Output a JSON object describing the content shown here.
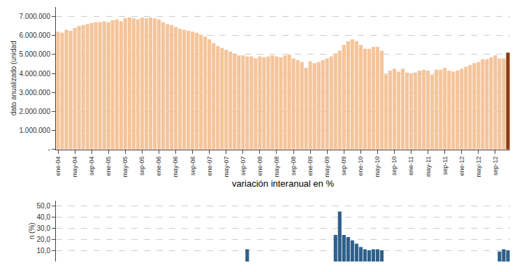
{
  "chart_data": [
    {
      "type": "bar",
      "y_label": "dato anualizado (unidad",
      "categories": [
        "ene-04",
        null,
        null,
        null,
        "may-04",
        null,
        null,
        null,
        "sep-04",
        null,
        null,
        null,
        "ene-05",
        null,
        null,
        null,
        "may-05",
        null,
        null,
        null,
        "sep-05",
        null,
        null,
        null,
        "ene-06",
        null,
        null,
        null,
        "may-06",
        null,
        null,
        null,
        "sep-06",
        null,
        null,
        null,
        "ene-07",
        null,
        null,
        null,
        "may-07",
        null,
        null,
        null,
        "sep-07",
        null,
        null,
        null,
        "ene-08",
        null,
        null,
        null,
        "may-08",
        null,
        null,
        null,
        "sep-08",
        null,
        null,
        null,
        "ene-09",
        null,
        null,
        null,
        "may-09",
        null,
        null,
        null,
        "sep-09",
        null,
        null,
        null,
        "ene-10",
        null,
        null,
        null,
        "may-10",
        null,
        null,
        null,
        "sep-10",
        null,
        null,
        null,
        "ene-11",
        null,
        null,
        null,
        "may-11",
        null,
        null,
        null,
        "sep-11",
        null,
        null,
        null,
        "ene-12",
        null,
        null,
        null,
        "may-12",
        null,
        null,
        null,
        "sep-12",
        null,
        null,
        null
      ],
      "values": [
        6200000,
        6150000,
        6300000,
        6250000,
        6400000,
        6500000,
        6550000,
        6600000,
        6650000,
        6700000,
        6700000,
        6750000,
        6700000,
        6800000,
        6850000,
        6750000,
        6900000,
        6950000,
        6900000,
        6850000,
        6950000,
        6900000,
        6950000,
        6900000,
        6850000,
        6700000,
        6600000,
        6550000,
        6450000,
        6350000,
        6300000,
        6250000,
        6200000,
        6150000,
        6050000,
        5950000,
        5800000,
        5600000,
        5450000,
        5350000,
        5250000,
        5150000,
        5050000,
        4950000,
        4950000,
        4900000,
        4900000,
        4800000,
        4900000,
        4850000,
        4900000,
        4950000,
        4900000,
        4850000,
        4950000,
        5000000,
        4800000,
        4700000,
        4600000,
        4300000,
        4650000,
        4550000,
        4600000,
        4700000,
        4800000,
        4900000,
        5050000,
        5200000,
        5500000,
        5700000,
        5800000,
        5700000,
        5500000,
        5300000,
        5300000,
        5400000,
        5400000,
        5200000,
        3950000,
        4150000,
        4250000,
        4100000,
        4250000,
        4050000,
        4000000,
        4050000,
        4150000,
        4200000,
        4150000,
        3950000,
        4200000,
        4200000,
        4300000,
        4150000,
        4100000,
        4150000,
        4250000,
        4350000,
        4450000,
        4550000,
        4600000,
        4750000,
        4750000,
        4850000,
        4950000,
        4800000,
        4800000,
        5100000
      ],
      "colors": [
        "#F5C49A",
        "#F5C49A",
        "#F5C49A",
        "#F5C49A",
        "#F5C49A",
        "#F5C49A",
        "#F5C49A",
        "#F5C49A",
        "#F5C49A",
        "#F5C49A",
        "#F5C49A",
        "#F5C49A",
        "#F5C49A",
        "#F5C49A",
        "#F5C49A",
        "#F5C49A",
        "#F5C49A",
        "#F5C49A",
        "#F5C49A",
        "#F5C49A",
        "#F5C49A",
        "#F5C49A",
        "#F5C49A",
        "#F5C49A",
        "#F5C49A",
        "#F5C49A",
        "#F5C49A",
        "#F5C49A",
        "#F5C49A",
        "#F5C49A",
        "#F5C49A",
        "#F5C49A",
        "#F5C49A",
        "#F5C49A",
        "#F5C49A",
        "#F5C49A",
        "#F5C49A",
        "#F5C49A",
        "#F5C49A",
        "#F5C49A",
        "#F5C49A",
        "#F5C49A",
        "#F5C49A",
        "#F5C49A",
        "#F5C49A",
        "#F5C49A",
        "#F5C49A",
        "#F5C49A",
        "#F5C49A",
        "#F5C49A",
        "#F5C49A",
        "#F5C49A",
        "#F5C49A",
        "#F5C49A",
        "#F5C49A",
        "#F5C49A",
        "#F5C49A",
        "#F5C49A",
        "#F5C49A",
        "#F5C49A",
        "#F5C49A",
        "#F5C49A",
        "#F5C49A",
        "#F5C49A",
        "#F5C49A",
        "#F5C49A",
        "#F5C49A",
        "#F5C49A",
        "#F5C49A",
        "#F5C49A",
        "#F5C49A",
        "#F5C49A",
        "#F5C49A",
        "#F5C49A",
        "#F5C49A",
        "#F5C49A",
        "#F5C49A",
        "#F5C49A",
        "#F5C49A",
        "#F5C49A",
        "#F5C49A",
        "#F5C49A",
        "#F5C49A",
        "#F5C49A",
        "#F5C49A",
        "#F5C49A",
        "#F5C49A",
        "#F5C49A",
        "#F5C49A",
        "#F5C49A",
        "#F5C49A",
        "#F5C49A",
        "#F5C49A",
        "#F5C49A",
        "#F5C49A",
        "#F5C49A",
        "#F5C49A",
        "#F5C49A",
        "#F5C49A",
        "#F5C49A",
        "#F5C49A",
        "#F5C49A",
        "#F5C49A",
        "#F5C49A",
        "#F5C49A",
        "#F5C49A",
        "#F5C49A",
        "#8B3A10"
      ],
      "ylim": [
        0,
        7500000
      ],
      "yticks": [
        {
          "value": 0,
          "label": "-"
        },
        {
          "value": 1000000,
          "label": "1.000.000"
        },
        {
          "value": 2000000,
          "label": "2.000.000"
        },
        {
          "value": 3000000,
          "label": "3.000.000"
        },
        {
          "value": 4000000,
          "label": "4.000.000"
        },
        {
          "value": 5000000,
          "label": "5.000.000"
        },
        {
          "value": 6000000,
          "label": "6.000.000"
        },
        {
          "value": 7000000,
          "label": "7.000.000"
        }
      ],
      "grid": true
    },
    {
      "type": "bar",
      "title": "variación interanual en %",
      "y_label": "n (%)",
      "values": [
        0,
        0,
        0,
        0,
        0,
        0,
        0,
        0,
        0,
        0,
        0,
        0,
        0,
        0,
        0,
        0,
        0,
        0,
        0,
        0,
        0,
        0,
        0,
        0,
        0,
        0,
        0,
        0,
        0,
        0,
        0,
        0,
        0,
        0,
        0,
        0,
        0,
        0,
        0,
        0,
        0,
        0,
        0,
        0,
        0,
        11,
        0,
        0,
        0,
        0,
        0,
        0,
        0,
        0,
        0,
        0,
        0,
        0,
        0,
        0,
        0,
        0,
        0,
        0,
        0,
        0,
        24,
        45,
        24,
        22,
        19,
        16,
        13,
        11,
        10,
        11,
        11,
        10,
        0,
        0,
        0,
        0,
        0,
        0,
        0,
        0,
        0,
        0,
        0,
        0,
        0,
        0,
        0,
        0,
        0,
        0,
        0,
        0,
        0,
        0,
        0,
        0,
        0,
        0,
        0,
        9,
        11,
        10
      ],
      "color": "#2E5F8A",
      "ylim": [
        0,
        55
      ],
      "yticks": [
        {
          "value": 10,
          "label": "10,0"
        },
        {
          "value": 20,
          "label": "20,0"
        },
        {
          "value": 30,
          "label": "30,0"
        },
        {
          "value": 40,
          "label": "40,0"
        },
        {
          "value": 50,
          "label": "50,0"
        }
      ],
      "tick_labels": "y",
      "grid": true
    }
  ]
}
